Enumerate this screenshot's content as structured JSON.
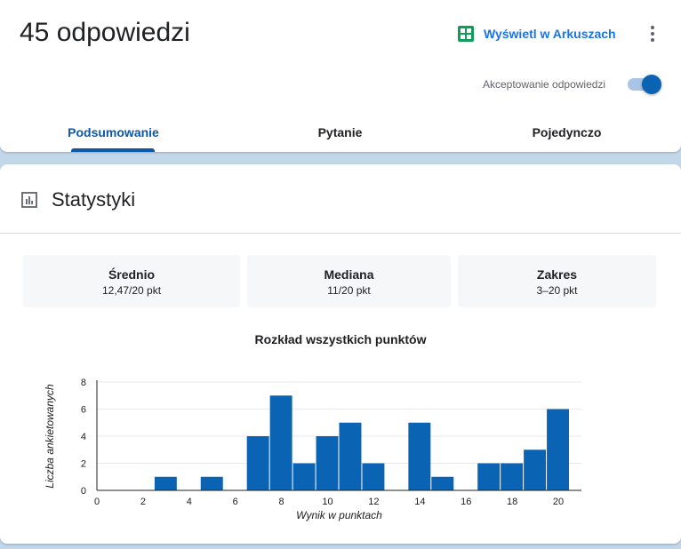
{
  "header": {
    "responses_title": "45 odpowiedzi",
    "sheets_link_label": "Wyświetl w Arkuszach",
    "accepting_label": "Akceptowanie odpowiedzi",
    "accepting_enabled": true
  },
  "tabs": [
    {
      "label": "Podsumowanie",
      "active": true
    },
    {
      "label": "Pytanie",
      "active": false
    },
    {
      "label": "Pojedynczo",
      "active": false
    }
  ],
  "stats": {
    "title": "Statystyki",
    "boxes": [
      {
        "label": "Średnio",
        "value": "12,47/20 pkt"
      },
      {
        "label": "Mediana",
        "value": "11/20 pkt"
      },
      {
        "label": "Zakres",
        "value": "3–20 pkt"
      }
    ]
  },
  "colors": {
    "accent": "#0b57a8",
    "bar": "#0b63b3",
    "link": "#1a73e8",
    "background": "#c2d7ea",
    "sheets_green": "#0f9d58"
  },
  "icons": {
    "sheets": "google-sheets-icon",
    "more": "more-vert-icon",
    "stats": "bar-chart-icon"
  },
  "chart_data": {
    "type": "bar",
    "title": "Rozkład wszystkich punktów",
    "xlabel": "Wynik w punktach",
    "ylabel": "Liczba ankietowanych",
    "x": [
      3,
      5,
      7,
      8,
      9,
      10,
      11,
      12,
      14,
      15,
      17,
      18,
      19,
      20
    ],
    "values": [
      1,
      1,
      4,
      7,
      2,
      4,
      5,
      2,
      5,
      1,
      2,
      2,
      3,
      6
    ],
    "xlim": [
      0,
      21
    ],
    "ylim": [
      0,
      8
    ],
    "x_ticks": [
      "0",
      "2",
      "4",
      "6",
      "8",
      "10",
      "12",
      "14",
      "16",
      "18",
      "20"
    ],
    "y_ticks": [
      "0",
      "2",
      "4",
      "6",
      "8"
    ],
    "grid": true
  }
}
